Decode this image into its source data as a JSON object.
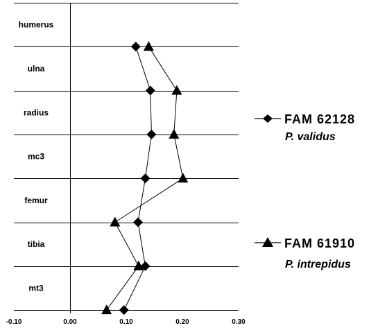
{
  "chart_data": {
    "type": "line",
    "categories": [
      "humerus",
      "ulna",
      "radius",
      "mc3",
      "femur",
      "tibia",
      "mt3"
    ],
    "x_ticks": [
      "-0.10",
      "0.00",
      "0.10",
      "0.20",
      "0.30"
    ],
    "xlim": [
      -0.1,
      0.3
    ],
    "xlabel": "",
    "ylabel": "",
    "title": "",
    "grid": "horizontal lines between categories",
    "legend_position": "right",
    "series": [
      {
        "name": "FAM 62128",
        "species": "P. validus",
        "marker": "diamond",
        "color": "#000000",
        "values": [
          0.117,
          0.143,
          0.145,
          0.134,
          0.121,
          0.134,
          0.096
        ]
      },
      {
        "name": "FAM 61910",
        "species": "P. intrepidus",
        "marker": "triangle",
        "color": "#000000",
        "values": [
          0.14,
          0.19,
          0.185,
          0.201,
          0.08,
          0.122,
          0.065
        ]
      }
    ]
  }
}
